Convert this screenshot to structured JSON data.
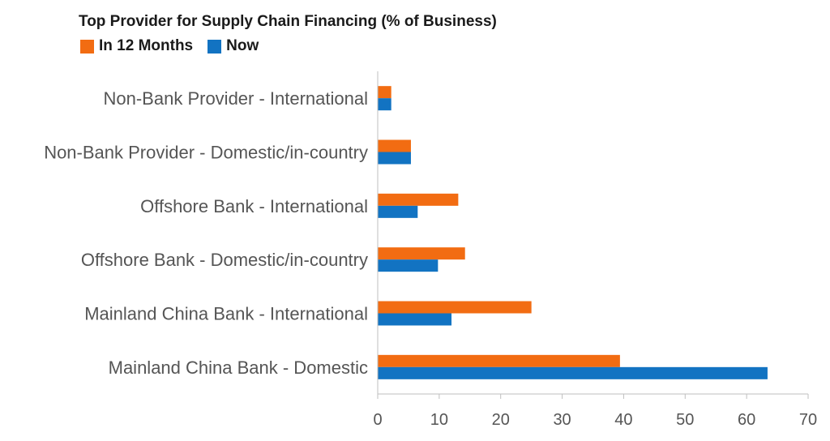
{
  "chart_data": {
    "type": "bar",
    "orientation": "horizontal",
    "title": "Top Provider for Supply Chain Financing (% of Business)",
    "categories": [
      "Non-Bank Provider - International",
      "Non-Bank Provider - Domestic/in-country",
      "Offshore Bank - International",
      "Offshore Bank - Domestic/in-country",
      "Mainland China Bank - International",
      "Mainland China Bank - Domestic"
    ],
    "series": [
      {
        "name": "In 12 Months",
        "color": "#f26c12",
        "values": [
          2.2,
          5.4,
          13.1,
          14.2,
          25.0,
          39.4
        ]
      },
      {
        "name": "Now",
        "color": "#1273c2",
        "values": [
          2.2,
          5.4,
          6.5,
          9.8,
          12.0,
          63.4
        ]
      }
    ],
    "xlim": [
      0,
      70
    ],
    "xticks": [
      "0",
      "10",
      "20",
      "30",
      "40",
      "50",
      "60",
      "70"
    ],
    "legend_position": "top-left",
    "grid": false
  }
}
